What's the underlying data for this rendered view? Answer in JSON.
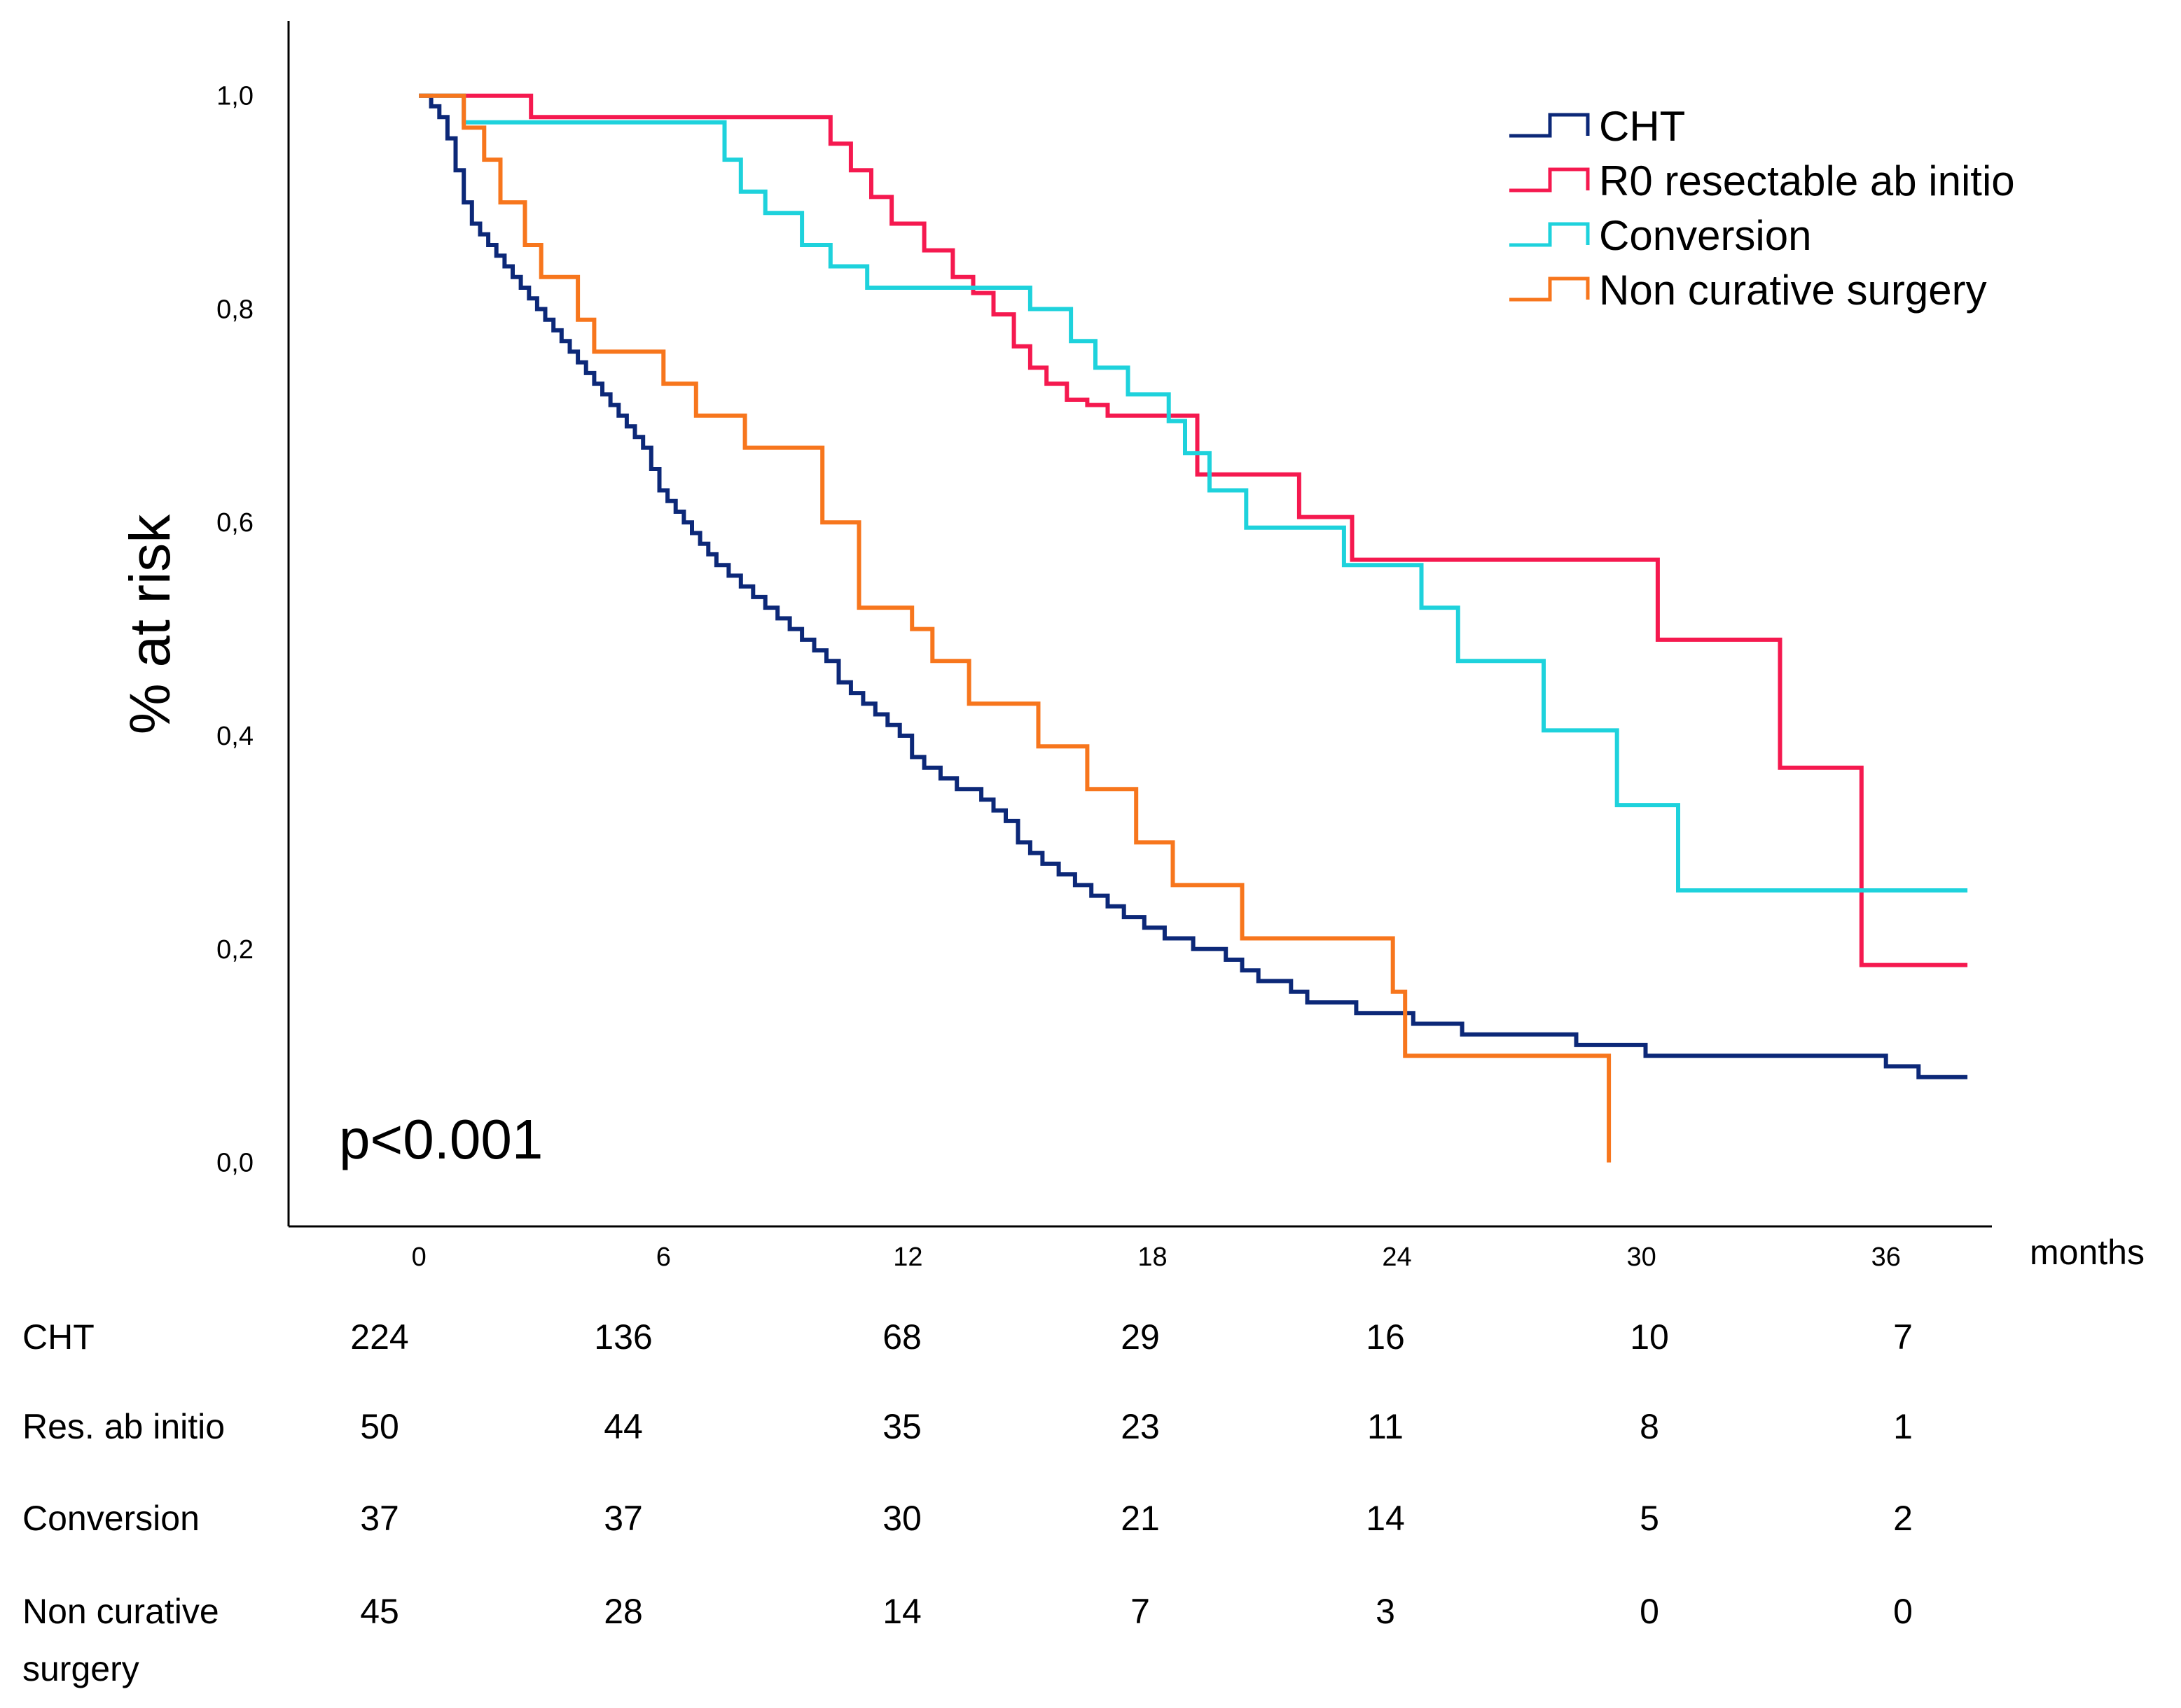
{
  "chart_data": {
    "type": "line",
    "subtype": "kaplan-meier step",
    "title": "",
    "ylabel": "% at risk",
    "xlabel": "months",
    "xlim": [
      -3.2,
      38.6
    ],
    "ylim": [
      -0.06,
      1.07
    ],
    "xticks": [
      0,
      6,
      12,
      18,
      24,
      30,
      36
    ],
    "xtick_labels": [
      "0",
      "6",
      "12",
      "18",
      "24",
      "30",
      "36"
    ],
    "yticks": [
      0.0,
      0.2,
      0.4,
      0.6,
      0.8,
      1.0
    ],
    "ytick_labels": [
      "0,0",
      "0,2",
      "0,4",
      "0,6",
      "0,8",
      "1,0"
    ],
    "annotation": "p<0.001",
    "legend_position": "top-right",
    "series": [
      {
        "name": "CHT",
        "color": "#0c2878",
        "x": [
          0,
          0.3,
          0.5,
          0.7,
          0.9,
          1.1,
          1.3,
          1.5,
          1.7,
          1.9,
          2.1,
          2.3,
          2.5,
          2.7,
          2.9,
          3.1,
          3.3,
          3.5,
          3.7,
          3.9,
          4.1,
          4.3,
          4.5,
          4.7,
          4.9,
          5.1,
          5.3,
          5.5,
          5.7,
          5.9,
          6.1,
          6.3,
          6.5,
          6.7,
          6.9,
          7.1,
          7.3,
          7.6,
          7.9,
          8.2,
          8.5,
          8.8,
          9.1,
          9.4,
          9.7,
          10.0,
          10.3,
          10.6,
          10.9,
          11.2,
          11.5,
          11.8,
          12.1,
          12.4,
          12.8,
          13.2,
          13.8,
          14.1,
          14.4,
          14.7,
          15.0,
          15.3,
          15.7,
          16.1,
          16.5,
          16.9,
          17.3,
          17.8,
          18.3,
          19.0,
          19.8,
          20.2,
          20.6,
          21.0,
          21.4,
          21.8,
          23.0,
          24.4,
          24.9,
          25.6,
          28.4,
          30.1,
          30.8,
          33.4,
          36.0,
          36.8,
          37.3,
          38.0
        ],
        "y": [
          1.0,
          0.99,
          0.98,
          0.96,
          0.93,
          0.9,
          0.88,
          0.87,
          0.86,
          0.85,
          0.84,
          0.83,
          0.82,
          0.81,
          0.8,
          0.79,
          0.78,
          0.77,
          0.76,
          0.75,
          0.74,
          0.73,
          0.72,
          0.71,
          0.7,
          0.69,
          0.68,
          0.67,
          0.65,
          0.63,
          0.62,
          0.61,
          0.6,
          0.59,
          0.58,
          0.57,
          0.56,
          0.55,
          0.54,
          0.53,
          0.52,
          0.51,
          0.5,
          0.49,
          0.48,
          0.47,
          0.45,
          0.44,
          0.43,
          0.42,
          0.41,
          0.4,
          0.38,
          0.37,
          0.36,
          0.35,
          0.34,
          0.33,
          0.32,
          0.3,
          0.29,
          0.28,
          0.27,
          0.26,
          0.25,
          0.24,
          0.23,
          0.22,
          0.21,
          0.2,
          0.19,
          0.18,
          0.17,
          0.17,
          0.16,
          0.15,
          0.14,
          0.13,
          0.13,
          0.12,
          0.11,
          0.1,
          0.1,
          0.1,
          0.09,
          0.08,
          0.08,
          0.08
        ]
      },
      {
        "name": "R0 resectable ab initio",
        "color": "#f5194f",
        "x": [
          0,
          2.75,
          10.1,
          10.6,
          11.1,
          11.6,
          12.4,
          13.1,
          13.6,
          14.1,
          14.6,
          15.0,
          15.4,
          15.9,
          16.4,
          16.9,
          19.1,
          21.6,
          22.9,
          30.4,
          33.4,
          35.4,
          38.0
        ],
        "y": [
          1.0,
          0.98,
          0.955,
          0.93,
          0.905,
          0.88,
          0.855,
          0.83,
          0.815,
          0.795,
          0.765,
          0.745,
          0.73,
          0.715,
          0.71,
          0.7,
          0.645,
          0.605,
          0.565,
          0.49,
          0.37,
          0.185,
          0.185
        ]
      },
      {
        "name": "Conversion",
        "color": "#1ed2dc",
        "x": [
          0,
          1.1,
          7.5,
          7.9,
          8.5,
          9.4,
          10.1,
          11.0,
          15.0,
          16.0,
          16.6,
          17.4,
          18.4,
          18.8,
          19.4,
          20.3,
          22.7,
          24.6,
          25.5,
          27.6,
          29.4,
          30.9,
          38.0
        ],
        "y": [
          1.0,
          0.975,
          0.94,
          0.91,
          0.89,
          0.86,
          0.84,
          0.82,
          0.8,
          0.77,
          0.745,
          0.72,
          0.695,
          0.665,
          0.63,
          0.595,
          0.56,
          0.52,
          0.47,
          0.405,
          0.335,
          0.255,
          0.255
        ]
      },
      {
        "name": "Non curative surgery",
        "color": "#f7761d",
        "x": [
          0,
          1.1,
          1.6,
          2.0,
          2.6,
          3.0,
          3.9,
          4.3,
          6.0,
          6.8,
          8.0,
          9.9,
          10.8,
          12.1,
          12.6,
          13.5,
          15.2,
          16.4,
          17.6,
          18.5,
          20.2,
          23.9,
          24.2,
          29.2
        ],
        "y": [
          1.0,
          0.97,
          0.94,
          0.9,
          0.86,
          0.83,
          0.79,
          0.76,
          0.73,
          0.7,
          0.67,
          0.6,
          0.52,
          0.5,
          0.47,
          0.43,
          0.39,
          0.35,
          0.3,
          0.26,
          0.21,
          0.16,
          0.1,
          0.0
        ]
      }
    ],
    "risk_table": {
      "rows": [
        {
          "label_lines": [
            "CHT"
          ],
          "values": [
            "224",
            "136",
            "68",
            "29",
            "16",
            "10",
            "7"
          ]
        },
        {
          "label_lines": [
            "Res. ab initio"
          ],
          "values": [
            "50",
            "44",
            "35",
            "23",
            "11",
            "8",
            "1"
          ]
        },
        {
          "label_lines": [
            "Conversion"
          ],
          "values": [
            "37",
            "37",
            "30",
            "21",
            "14",
            "5",
            "2"
          ]
        },
        {
          "label_lines": [
            "Non curative",
            "surgery"
          ],
          "values": [
            "45",
            "28",
            "14",
            "7",
            "3",
            "0",
            "0"
          ]
        }
      ]
    }
  }
}
